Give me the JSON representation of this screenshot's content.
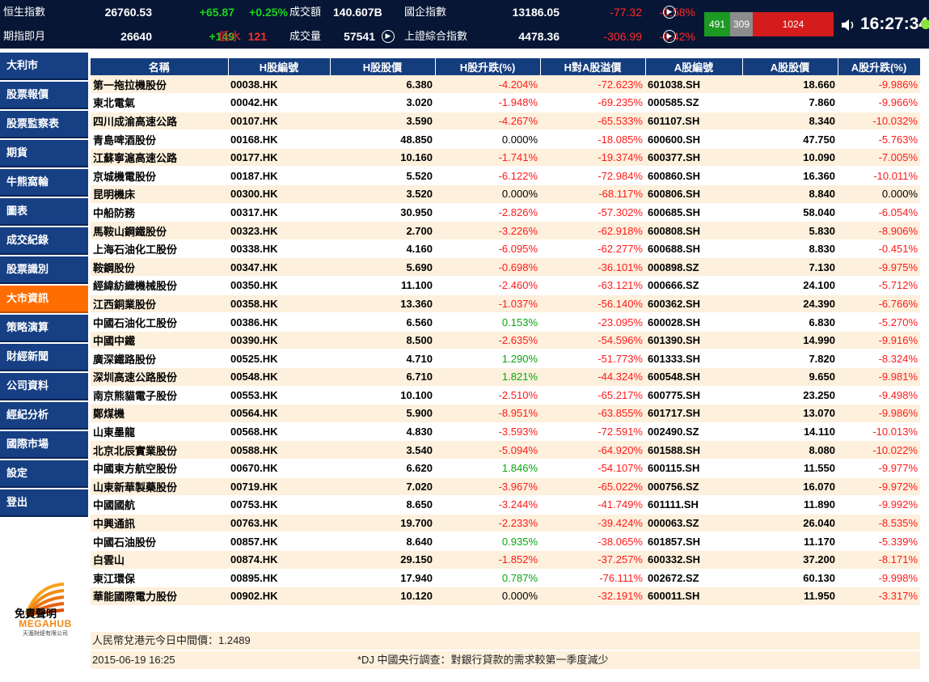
{
  "ticker": {
    "row1": {
      "label": "恒生指數",
      "value": "26760.53",
      "change": "+65.87",
      "change_pct": "+0.25%",
      "turnover_label": "成交額",
      "turnover": "140.607B",
      "idx2_label": "國企指數",
      "idx2_value": "13186.05",
      "idx2_change": "-77.32",
      "idx2_pct": "-0.58%"
    },
    "row2": {
      "label": "期指即月",
      "value": "26640",
      "change": "+149",
      "basis_label": "低水",
      "basis": "121",
      "volume_label": "成交量",
      "volume": "57541",
      "idx2_label": "上證綜合指數",
      "idx2_value": "4478.36",
      "idx2_change": "-306.99",
      "idx2_pct": "-6.42%"
    },
    "breadth": {
      "advance": "491",
      "unchanged": "309",
      "decline": "1024"
    },
    "time": "16:27:34",
    "icons": {
      "play": "play-circle-icon",
      "speaker": "speaker-icon",
      "status": "status-dot-icon"
    },
    "colors": {
      "up": "#19d41e",
      "down": "#ff2a2a",
      "bg": "#061634"
    }
  },
  "sidebar": {
    "items": [
      {
        "label": "大利市"
      },
      {
        "label": "股票報價"
      },
      {
        "label": "股票監察表"
      },
      {
        "label": "期貨"
      },
      {
        "label": "牛熊窩輪"
      },
      {
        "label": "圖表"
      },
      {
        "label": "成交紀錄"
      },
      {
        "label": "股票識別"
      },
      {
        "label": "大市資訊",
        "active": true
      },
      {
        "label": "策略演算"
      },
      {
        "label": "財經新聞"
      },
      {
        "label": "公司資料"
      },
      {
        "label": "經紀分析"
      },
      {
        "label": "國際市場"
      },
      {
        "label": "設定"
      },
      {
        "label": "登出"
      }
    ],
    "logo": {
      "name": "MEGAHUB",
      "sub": "天滙財經有限公司"
    },
    "disclaimer": "免責聲明",
    "colors": {
      "nav": "#163f84",
      "active": "#ff6d00"
    }
  },
  "table": {
    "headers": [
      "名稱",
      "H股編號",
      "H股股價",
      "H股升跌(%)",
      "H對A股溢價",
      "A股編號",
      "A股股價",
      "A股升跌(%)"
    ],
    "rows": [
      [
        "第一拖拉機股份",
        "00038.HK",
        "6.380",
        "-4.204%",
        "-72.623%",
        "601038.SH",
        "18.660",
        "-9.986%"
      ],
      [
        "東北電氣",
        "00042.HK",
        "3.020",
        "-1.948%",
        "-69.235%",
        "000585.SZ",
        "7.860",
        "-9.966%"
      ],
      [
        "四川成渝高速公路",
        "00107.HK",
        "3.590",
        "-4.267%",
        "-65.533%",
        "601107.SH",
        "8.340",
        "-10.032%"
      ],
      [
        "青島啤酒股份",
        "00168.HK",
        "48.850",
        "0.000%",
        "-18.085%",
        "600600.SH",
        "47.750",
        "-5.763%"
      ],
      [
        "江蘇寧滬高速公路",
        "00177.HK",
        "10.160",
        "-1.741%",
        "-19.374%",
        "600377.SH",
        "10.090",
        "-7.005%"
      ],
      [
        "京城機電股份",
        "00187.HK",
        "5.520",
        "-6.122%",
        "-72.984%",
        "600860.SH",
        "16.360",
        "-10.011%"
      ],
      [
        "昆明機床",
        "00300.HK",
        "3.520",
        "0.000%",
        "-68.117%",
        "600806.SH",
        "8.840",
        "0.000%"
      ],
      [
        "中船防務",
        "00317.HK",
        "30.950",
        "-2.826%",
        "-57.302%",
        "600685.SH",
        "58.040",
        "-6.054%"
      ],
      [
        "馬鞍山鋼鐵股份",
        "00323.HK",
        "2.700",
        "-3.226%",
        "-62.918%",
        "600808.SH",
        "5.830",
        "-8.906%"
      ],
      [
        "上海石油化工股份",
        "00338.HK",
        "4.160",
        "-6.095%",
        "-62.277%",
        "600688.SH",
        "8.830",
        "-0.451%"
      ],
      [
        "鞍鋼股份",
        "00347.HK",
        "5.690",
        "-0.698%",
        "-36.101%",
        "000898.SZ",
        "7.130",
        "-9.975%"
      ],
      [
        "經緯紡織機械股份",
        "00350.HK",
        "11.100",
        "-2.460%",
        "-63.121%",
        "000666.SZ",
        "24.100",
        "-5.712%"
      ],
      [
        "江西銅業股份",
        "00358.HK",
        "13.360",
        "-1.037%",
        "-56.140%",
        "600362.SH",
        "24.390",
        "-6.766%"
      ],
      [
        "中國石油化工股份",
        "00386.HK",
        "6.560",
        "0.153%",
        "-23.095%",
        "600028.SH",
        "6.830",
        "-5.270%"
      ],
      [
        "中國中鐵",
        "00390.HK",
        "8.500",
        "-2.635%",
        "-54.596%",
        "601390.SH",
        "14.990",
        "-9.916%"
      ],
      [
        "廣深鐵路股份",
        "00525.HK",
        "4.710",
        "1.290%",
        "-51.773%",
        "601333.SH",
        "7.820",
        "-8.324%"
      ],
      [
        "深圳高速公路股份",
        "00548.HK",
        "6.710",
        "1.821%",
        "-44.324%",
        "600548.SH",
        "9.650",
        "-9.981%"
      ],
      [
        "南京熊貓電子股份",
        "00553.HK",
        "10.100",
        "-2.510%",
        "-65.217%",
        "600775.SH",
        "23.250",
        "-9.498%"
      ],
      [
        "鄭煤機",
        "00564.HK",
        "5.900",
        "-8.951%",
        "-63.855%",
        "601717.SH",
        "13.070",
        "-9.986%"
      ],
      [
        "山東墨龍",
        "00568.HK",
        "4.830",
        "-3.593%",
        "-72.591%",
        "002490.SZ",
        "14.110",
        "-10.013%"
      ],
      [
        "北京北辰實業股份",
        "00588.HK",
        "3.540",
        "-5.094%",
        "-64.920%",
        "601588.SH",
        "8.080",
        "-10.022%"
      ],
      [
        "中國東方航空股份",
        "00670.HK",
        "6.620",
        "1.846%",
        "-54.107%",
        "600115.SH",
        "11.550",
        "-9.977%"
      ],
      [
        "山東新華製藥股份",
        "00719.HK",
        "7.020",
        "-3.967%",
        "-65.022%",
        "000756.SZ",
        "16.070",
        "-9.972%"
      ],
      [
        "中國國航",
        "00753.HK",
        "8.650",
        "-3.244%",
        "-41.749%",
        "601111.SH",
        "11.890",
        "-9.992%"
      ],
      [
        "中興通訊",
        "00763.HK",
        "19.700",
        "-2.233%",
        "-39.424%",
        "000063.SZ",
        "26.040",
        "-8.535%"
      ],
      [
        "中國石油股份",
        "00857.HK",
        "8.640",
        "0.935%",
        "-38.065%",
        "601857.SH",
        "11.170",
        "-5.339%"
      ],
      [
        "白雲山",
        "00874.HK",
        "29.150",
        "-1.852%",
        "-37.257%",
        "600332.SH",
        "37.200",
        "-8.171%"
      ],
      [
        "東江環保",
        "00895.HK",
        "17.940",
        "0.787%",
        "-76.111%",
        "002672.SZ",
        "60.130",
        "-9.998%"
      ],
      [
        "華能國際電力股份",
        "00902.HK",
        "10.120",
        "0.000%",
        "-32.191%",
        "600011.SH",
        "11.950",
        "-3.317%"
      ]
    ],
    "colors": {
      "header": "#143d7e",
      "stripe": "#fdf0dc",
      "negative": "#ff1a1a",
      "positive": "#0aa510"
    }
  },
  "footer": {
    "rate_text": "人民幣兌港元今日中間價：1.2489",
    "timestamp": "2015-06-19 16:25",
    "news": "*DJ 中國央行調查：對銀行貸款的需求較第一季度減少"
  }
}
